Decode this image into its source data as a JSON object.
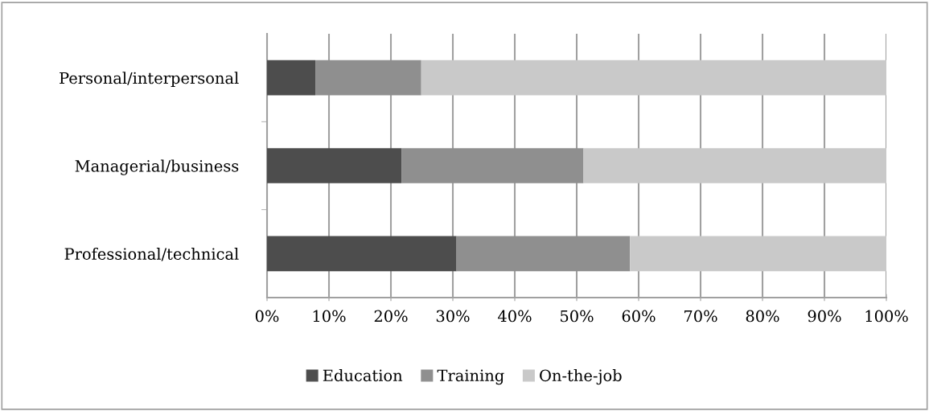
{
  "chart_data": {
    "type": "bar",
    "orientation": "horizontal",
    "stacked": true,
    "categories": [
      "Personal/interpersonal",
      "Managerial/business",
      "Professional/technical"
    ],
    "series": [
      {
        "name": "Education",
        "color": "#4d4d4d",
        "values": [
          7.8,
          21.7,
          30.6
        ]
      },
      {
        "name": "Training",
        "color": "#8f8f8f",
        "values": [
          17.1,
          29.4,
          28.0
        ]
      },
      {
        "name": "On-the-job",
        "color": "#c9c9c9",
        "values": [
          75.1,
          48.9,
          41.4
        ]
      }
    ],
    "xlim": [
      0,
      100
    ],
    "xticks": [
      {
        "value": 0,
        "label": "0%"
      },
      {
        "value": 10,
        "label": "10%"
      },
      {
        "value": 20,
        "label": "20%"
      },
      {
        "value": 30,
        "label": "30%"
      },
      {
        "value": 40,
        "label": "40%"
      },
      {
        "value": 50,
        "label": "50%"
      },
      {
        "value": 60,
        "label": "60%"
      },
      {
        "value": 70,
        "label": "70%"
      },
      {
        "value": 80,
        "label": "80%"
      },
      {
        "value": 90,
        "label": "90%"
      },
      {
        "value": 100,
        "label": "100%"
      }
    ],
    "grid": "x",
    "legend": "bottom"
  }
}
